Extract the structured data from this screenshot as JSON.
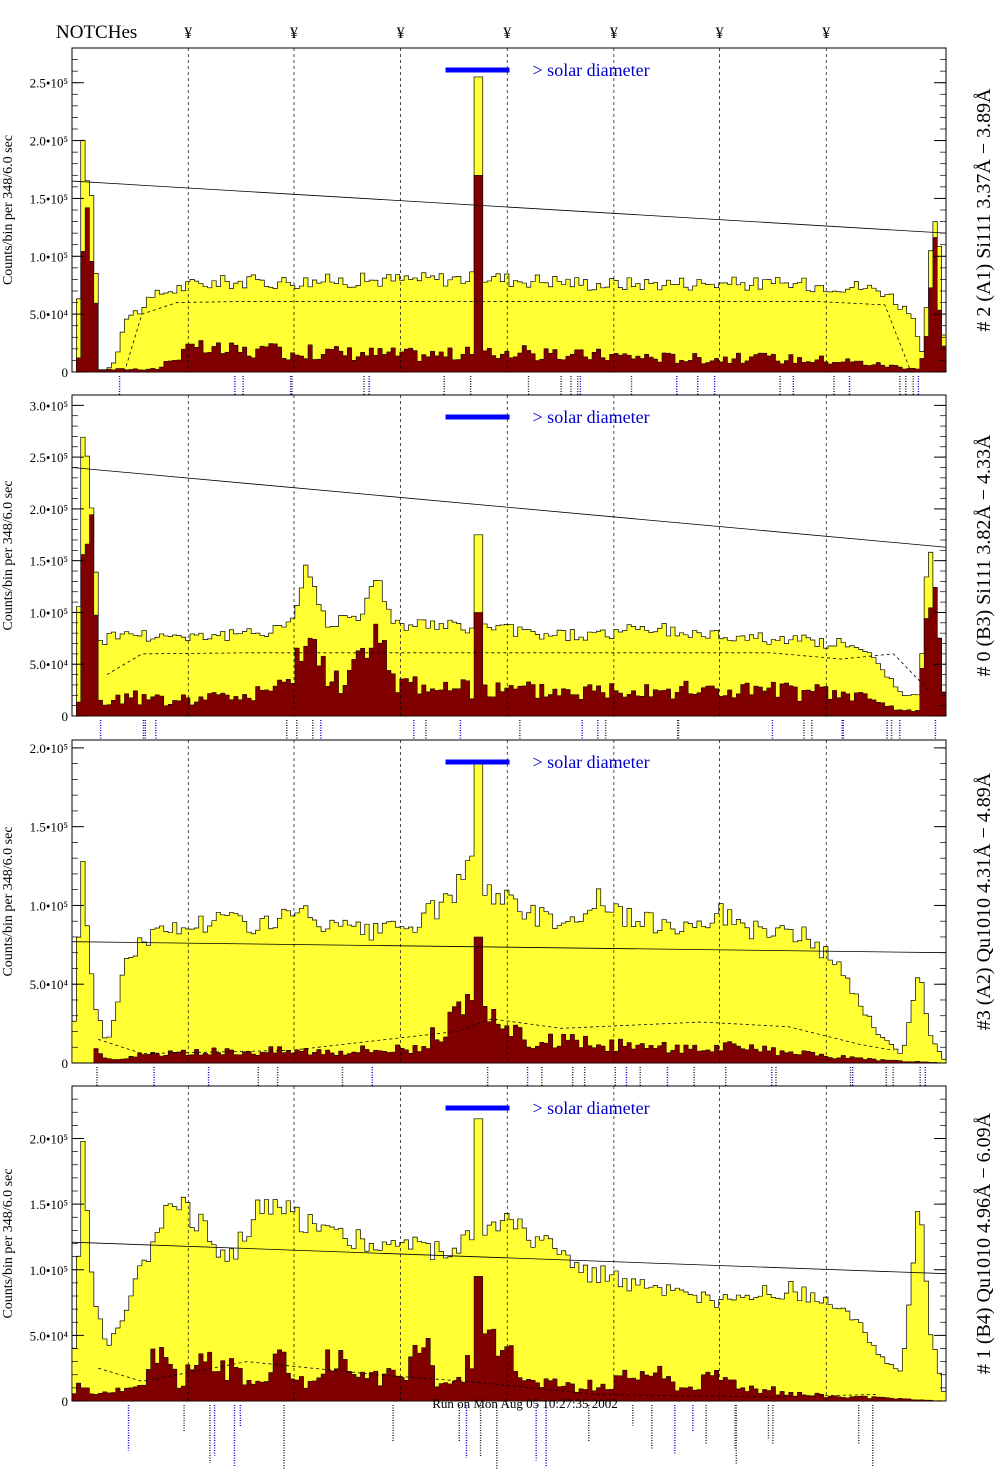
{
  "header": {
    "label": "NOTCHes",
    "marker_glyph": "¥"
  },
  "footer": {
    "run_text": "Run on Mon Aug 05 10:27:35 2002"
  },
  "colors": {
    "total_fill": "#ffff33",
    "subset_fill": "#800000",
    "solar_bar": "#0000ff",
    "label_blue": "#0000cc",
    "axis": "#000000"
  },
  "chart_data": [
    {
      "type": "bar",
      "title": "# 2 (A1) Si111  3.37Å − 3.89Å",
      "ylabel": "Counts/bin per  348/6.0 sec",
      "ylim": [
        0,
        280000
      ],
      "yticks": [
        {
          "v": 0,
          "label": "0"
        },
        {
          "v": 50000,
          "label": "5.0•10⁴"
        },
        {
          "v": 100000,
          "label": "1.0•10⁵"
        },
        {
          "v": 150000,
          "label": "1.5•10⁵"
        },
        {
          "v": 200000,
          "label": "2.0•10⁵"
        },
        {
          "v": 250000,
          "label": "2.5•10⁵"
        }
      ],
      "annotation": "> solar diameter",
      "trend_line": [
        165000,
        120000
      ],
      "total_knots": [
        [
          0,
          0
        ],
        [
          0.5,
          0
        ],
        [
          1.2,
          190000
        ],
        [
          2.5,
          140000
        ],
        [
          3.2,
          2000
        ],
        [
          4,
          2000
        ],
        [
          5,
          10000
        ],
        [
          6,
          45000
        ],
        [
          8,
          55000
        ],
        [
          10,
          68000
        ],
        [
          14,
          76000
        ],
        [
          18,
          78000
        ],
        [
          25,
          78000
        ],
        [
          30,
          79000
        ],
        [
          38,
          80000
        ],
        [
          45,
          81000
        ],
        [
          48,
          82000
        ],
        [
          50,
          80000
        ],
        [
          55,
          79000
        ],
        [
          60,
          76000
        ],
        [
          70,
          77000
        ],
        [
          82,
          76000
        ],
        [
          90,
          74000
        ],
        [
          93,
          70000
        ],
        [
          96,
          50000
        ],
        [
          97.3,
          15000
        ],
        [
          98,
          80000
        ],
        [
          99,
          150000
        ],
        [
          99.5,
          60000
        ],
        [
          100,
          0
        ]
      ],
      "subset_knots": [
        [
          0,
          0
        ],
        [
          0.7,
          0
        ],
        [
          1.3,
          160000
        ],
        [
          2.3,
          120000
        ],
        [
          3,
          2000
        ],
        [
          10,
          3000
        ],
        [
          12,
          15000
        ],
        [
          14,
          20000
        ],
        [
          20,
          18000
        ],
        [
          30,
          17000
        ],
        [
          40,
          15000
        ],
        [
          48,
          16000
        ],
        [
          50,
          18000
        ],
        [
          55,
          14000
        ],
        [
          60,
          15000
        ],
        [
          70,
          12000
        ],
        [
          80,
          12000
        ],
        [
          88,
          10000
        ],
        [
          93,
          6000
        ],
        [
          97,
          3000
        ],
        [
          98,
          40000
        ],
        [
          99,
          125000
        ],
        [
          99.6,
          30000
        ],
        [
          100,
          0
        ]
      ],
      "dashed_knots": [
        [
          6,
          0
        ],
        [
          8,
          50000
        ],
        [
          12,
          60000
        ],
        [
          20,
          61000
        ],
        [
          85,
          61000
        ],
        [
          93,
          58000
        ],
        [
          96,
          0
        ]
      ],
      "peaks": [
        {
          "x": 46.4,
          "total": 255000,
          "subset": 170000
        }
      ]
    },
    {
      "type": "bar",
      "title": "# 0 (B3) Si111  3.82Å − 4.33Å",
      "ylabel": "Counts/bin per  348/6.0 sec",
      "ylim": [
        0,
        310000
      ],
      "yticks": [
        {
          "v": 0,
          "label": "0"
        },
        {
          "v": 50000,
          "label": "5.0•10⁴"
        },
        {
          "v": 100000,
          "label": "1.0•10⁵"
        },
        {
          "v": 150000,
          "label": "1.5•10⁵"
        },
        {
          "v": 200000,
          "label": "2.0•10⁵"
        },
        {
          "v": 250000,
          "label": "2.5•10⁵"
        },
        {
          "v": 300000,
          "label": "3.0•10⁵"
        }
      ],
      "annotation": "> solar diameter",
      "trend_line": [
        240000,
        163000
      ],
      "total_knots": [
        [
          0,
          0
        ],
        [
          0.5,
          0
        ],
        [
          1.2,
          285000
        ],
        [
          2.5,
          180000
        ],
        [
          3.3,
          70000
        ],
        [
          5,
          80000
        ],
        [
          10,
          78000
        ],
        [
          20,
          78000
        ],
        [
          25,
          90000
        ],
        [
          27,
          145000
        ],
        [
          29,
          90000
        ],
        [
          33,
          100000
        ],
        [
          35,
          130000
        ],
        [
          37,
          90000
        ],
        [
          45,
          85000
        ],
        [
          47,
          88000
        ],
        [
          52,
          80000
        ],
        [
          58,
          78000
        ],
        [
          62,
          80000
        ],
        [
          66,
          85000
        ],
        [
          70,
          80000
        ],
        [
          80,
          75000
        ],
        [
          88,
          70000
        ],
        [
          92,
          55000
        ],
        [
          95,
          20000
        ],
        [
          97,
          20000
        ],
        [
          98,
          170000
        ],
        [
          99,
          100000
        ],
        [
          100,
          0
        ]
      ],
      "subset_knots": [
        [
          0,
          0
        ],
        [
          0.7,
          0
        ],
        [
          1.3,
          250000
        ],
        [
          2.5,
          150000
        ],
        [
          3.3,
          5000
        ],
        [
          5,
          20000
        ],
        [
          10,
          15000
        ],
        [
          20,
          20000
        ],
        [
          25,
          30000
        ],
        [
          27,
          80000
        ],
        [
          28,
          60000
        ],
        [
          30,
          30000
        ],
        [
          33,
          55000
        ],
        [
          35,
          70000
        ],
        [
          37,
          35000
        ],
        [
          45,
          25000
        ],
        [
          50,
          25000
        ],
        [
          60,
          25000
        ],
        [
          65,
          30000
        ],
        [
          70,
          25000
        ],
        [
          80,
          25000
        ],
        [
          90,
          20000
        ],
        [
          95,
          5000
        ],
        [
          97,
          5000
        ],
        [
          98,
          170000
        ],
        [
          99,
          120000
        ],
        [
          100,
          0
        ]
      ],
      "dashed_knots": [
        [
          4,
          40000
        ],
        [
          8,
          60000
        ],
        [
          20,
          61000
        ],
        [
          80,
          61000
        ],
        [
          88,
          55000
        ],
        [
          94,
          60000
        ],
        [
          98,
          25000
        ]
      ],
      "peaks": [
        {
          "x": 46.4,
          "total": 175000,
          "subset": 100000
        }
      ]
    },
    {
      "type": "bar",
      "title": "#3 (A2) Qu1010  4.31Å − 4.89Å",
      "ylabel": "Counts/bin per  348/6.0 sec",
      "ylim": [
        0,
        205000
      ],
      "yticks": [
        {
          "v": 0,
          "label": "0"
        },
        {
          "v": 50000,
          "label": "5.0•10⁴"
        },
        {
          "v": 100000,
          "label": "1.0•10⁵"
        },
        {
          "v": 150000,
          "label": "1.5•10⁵"
        },
        {
          "v": 200000,
          "label": "2.0•10⁵"
        }
      ],
      "annotation": "> solar diameter",
      "trend_line": [
        77000,
        70000
      ],
      "total_knots": [
        [
          0,
          0
        ],
        [
          1.2,
          130000
        ],
        [
          2.5,
          40000
        ],
        [
          4,
          10000
        ],
        [
          6,
          60000
        ],
        [
          8,
          80000
        ],
        [
          12,
          85000
        ],
        [
          17,
          92000
        ],
        [
          22,
          88000
        ],
        [
          26,
          95000
        ],
        [
          30,
          85000
        ],
        [
          35,
          82000
        ],
        [
          40,
          90000
        ],
        [
          44,
          110000
        ],
        [
          46,
          125000
        ],
        [
          48,
          110000
        ],
        [
          52,
          95000
        ],
        [
          58,
          90000
        ],
        [
          60,
          105000
        ],
        [
          64,
          90000
        ],
        [
          70,
          88000
        ],
        [
          74,
          95000
        ],
        [
          78,
          85000
        ],
        [
          84,
          80000
        ],
        [
          88,
          60000
        ],
        [
          92,
          20000
        ],
        [
          95,
          5000
        ],
        [
          97,
          60000
        ],
        [
          98,
          20000
        ],
        [
          100,
          0
        ]
      ],
      "subset_knots": [
        [
          0,
          0
        ],
        [
          2.4,
          0
        ],
        [
          3,
          12000
        ],
        [
          4,
          2000
        ],
        [
          8,
          5000
        ],
        [
          20,
          8000
        ],
        [
          30,
          8000
        ],
        [
          40,
          10000
        ],
        [
          43,
          25000
        ],
        [
          46,
          35000
        ],
        [
          48,
          25000
        ],
        [
          52,
          15000
        ],
        [
          60,
          12000
        ],
        [
          66,
          10000
        ],
        [
          75,
          10000
        ],
        [
          85,
          5000
        ],
        [
          92,
          2000
        ],
        [
          100,
          0
        ]
      ],
      "dashed_knots": [
        [
          3,
          15000
        ],
        [
          8,
          6000
        ],
        [
          25,
          8000
        ],
        [
          44,
          20000
        ],
        [
          48,
          28000
        ],
        [
          56,
          22000
        ],
        [
          72,
          26000
        ],
        [
          82,
          23000
        ],
        [
          90,
          12000
        ],
        [
          94,
          8000
        ]
      ],
      "peaks": [
        {
          "x": 46.4,
          "total": 190000,
          "subset": 80000
        }
      ]
    },
    {
      "type": "bar",
      "title": "# 1 (B4) Qu1010 4.96Å − 6.09Å",
      "ylabel": "Counts/bin per  348/6.0 sec",
      "ylim": [
        0,
        240000
      ],
      "yticks": [
        {
          "v": 0,
          "label": "0"
        },
        {
          "v": 50000,
          "label": "5.0•10⁴"
        },
        {
          "v": 100000,
          "label": "1.0•10⁵"
        },
        {
          "v": 150000,
          "label": "1.5•10⁵"
        },
        {
          "v": 200000,
          "label": "2.0•10⁵"
        }
      ],
      "annotation": "> solar diameter",
      "trend_line": [
        121000,
        97000
      ],
      "total_knots": [
        [
          0,
          0
        ],
        [
          1.2,
          190000
        ],
        [
          2.5,
          80000
        ],
        [
          4,
          40000
        ],
        [
          6,
          70000
        ],
        [
          8,
          100000
        ],
        [
          10,
          140000
        ],
        [
          12,
          160000
        ],
        [
          15,
          130000
        ],
        [
          18,
          110000
        ],
        [
          22,
          150000
        ],
        [
          26,
          140000
        ],
        [
          30,
          130000
        ],
        [
          34,
          120000
        ],
        [
          38,
          120000
        ],
        [
          42,
          115000
        ],
        [
          46,
          125000
        ],
        [
          50,
          135000
        ],
        [
          54,
          120000
        ],
        [
          58,
          100000
        ],
        [
          62,
          95000
        ],
        [
          66,
          85000
        ],
        [
          70,
          80000
        ],
        [
          74,
          75000
        ],
        [
          78,
          80000
        ],
        [
          82,
          85000
        ],
        [
          86,
          75000
        ],
        [
          90,
          60000
        ],
        [
          93,
          30000
        ],
        [
          95,
          20000
        ],
        [
          97,
          160000
        ],
        [
          98,
          60000
        ],
        [
          100,
          0
        ]
      ],
      "subset_knots": [
        [
          0,
          0
        ],
        [
          1,
          20000
        ],
        [
          2,
          5000
        ],
        [
          8,
          10000
        ],
        [
          10,
          40000
        ],
        [
          12,
          15000
        ],
        [
          16,
          35000
        ],
        [
          20,
          15000
        ],
        [
          24,
          30000
        ],
        [
          28,
          10000
        ],
        [
          30,
          40000
        ],
        [
          32,
          15000
        ],
        [
          38,
          20000
        ],
        [
          40,
          50000
        ],
        [
          42,
          10000
        ],
        [
          46,
          30000
        ],
        [
          48,
          45000
        ],
        [
          52,
          20000
        ],
        [
          58,
          10000
        ],
        [
          62,
          15000
        ],
        [
          66,
          25000
        ],
        [
          70,
          10000
        ],
        [
          74,
          20000
        ],
        [
          78,
          10000
        ],
        [
          84,
          5000
        ],
        [
          90,
          3000
        ],
        [
          100,
          0
        ]
      ],
      "dashed_knots": [
        [
          3,
          25000
        ],
        [
          8,
          15000
        ],
        [
          20,
          30000
        ],
        [
          35,
          20000
        ],
        [
          45,
          15000
        ],
        [
          60,
          5000
        ],
        [
          80,
          3000
        ],
        [
          92,
          5000
        ]
      ],
      "peaks": [
        {
          "x": 46.4,
          "total": 215000,
          "subset": 95000
        }
      ]
    }
  ],
  "notch_positions": [
    13.3,
    25.4,
    37.6,
    49.8,
    62.0,
    74.1,
    86.3
  ]
}
